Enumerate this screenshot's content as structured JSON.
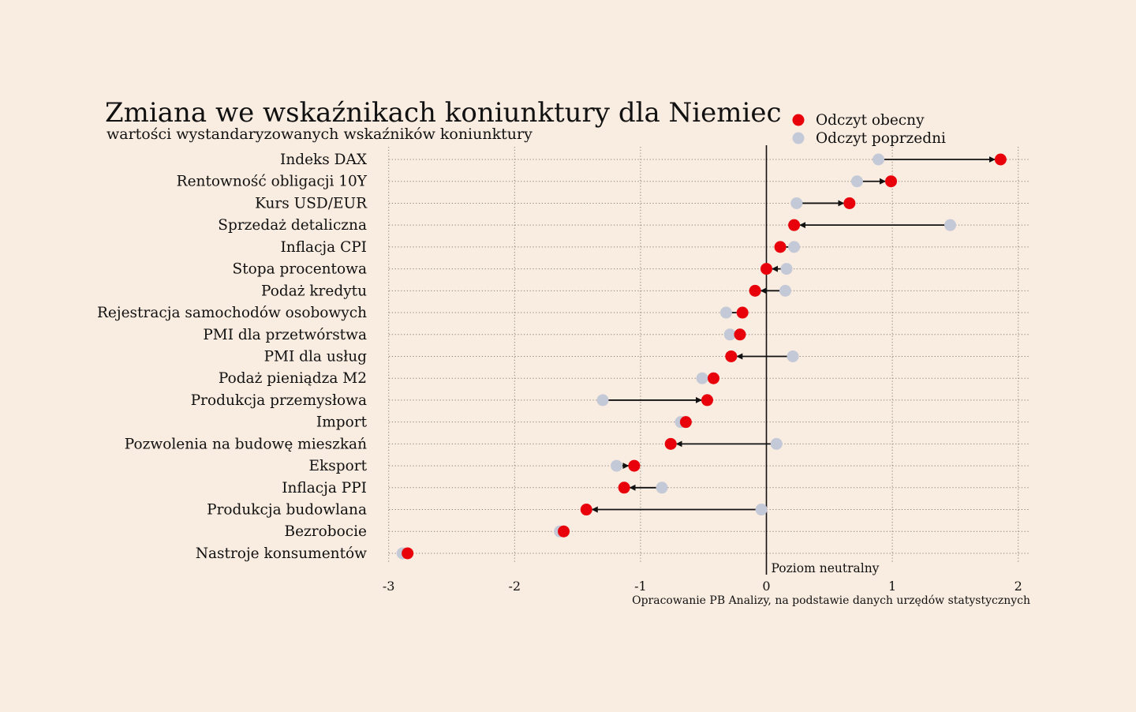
{
  "title": "Zmiana we wskaźnikach koniunktury dla Niemiec",
  "subtitle": "wartości wystandaryzowanych wskaźników koniunktury",
  "source": "Opracowanie PB Analizy, na podstawie danych urzędów statystycznych",
  "neutral_label": "Poziom neutralny",
  "colors": {
    "background": "#f9ece0",
    "current": "#e8000b",
    "previous": "#c4c9d8",
    "line": "#111111",
    "grid": "#8a7f76"
  },
  "chart_data": {
    "type": "dumbbell",
    "title": "Zmiana we wskaźnikach koniunktury dla Niemiec",
    "subtitle": "wartości wystandaryzowanych wskaźników koniunktury",
    "xlim": [
      -3,
      2
    ],
    "xticks": [
      -3,
      -2,
      -1,
      0,
      1,
      2
    ],
    "xtick_labels": [
      "-3",
      "-2",
      "-1",
      "0",
      "1",
      "2"
    ],
    "grid": true,
    "legend": {
      "placement": "top-right",
      "entries": [
        "Odczyt obecny",
        "Odczyt poprzedni"
      ]
    },
    "categories": [
      "Indeks DAX",
      "Rentowność obligacji 10Y",
      "Kurs USD/EUR",
      "Sprzedaż detaliczna",
      "Inflacja CPI",
      "Stopa procentowa",
      "Podaż kredytu",
      "Rejestracja samochodów osobowych",
      "PMI dla przetwórstwa",
      "PMI dla usług",
      "Podaż pieniądza M2",
      "Produkcja przemysłowa",
      "Import",
      "Pozwolenia na budowę mieszkań",
      "Eksport",
      "Inflacja PPI",
      "Produkcja budowlana",
      "Bezrobocie",
      "Nastroje konsumentów"
    ],
    "series": [
      {
        "name": "Odczyt obecny",
        "values": [
          1.86,
          0.99,
          0.66,
          0.22,
          0.11,
          0.0,
          -0.09,
          -0.19,
          -0.21,
          -0.28,
          -0.42,
          -0.47,
          -0.64,
          -0.76,
          -1.05,
          -1.13,
          -1.43,
          -1.61,
          -2.85
        ]
      },
      {
        "name": "Odczyt poprzedni",
        "values": [
          0.89,
          0.72,
          0.24,
          1.46,
          0.22,
          0.16,
          0.15,
          -0.32,
          -0.29,
          0.21,
          -0.51,
          -1.3,
          -0.68,
          0.08,
          -1.19,
          -0.83,
          -0.04,
          -1.64,
          -2.89
        ]
      }
    ]
  }
}
